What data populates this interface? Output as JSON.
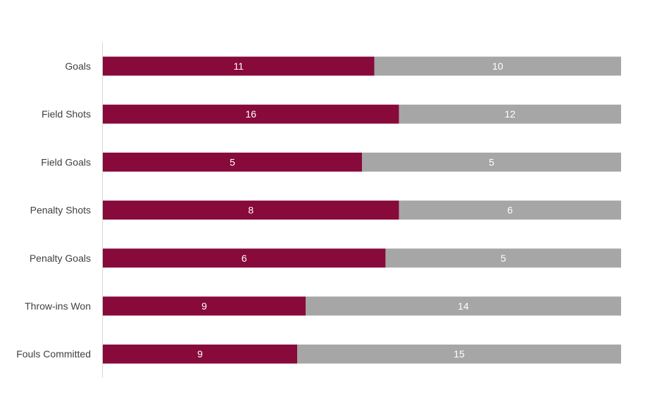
{
  "chart_data": {
    "type": "bar",
    "orientation": "horizontal",
    "stacked": "100-percent",
    "categories": [
      "Goals",
      "Field Shots",
      "Field Goals",
      "Penalty Shots",
      "Penalty Goals",
      "Throw-ins Won",
      "Fouls Committed"
    ],
    "series": [
      {
        "values": [
          11,
          16,
          5,
          8,
          6,
          9,
          9
        ],
        "color": "#870A3A"
      },
      {
        "values": [
          10,
          12,
          5,
          6,
          5,
          14,
          15
        ],
        "color": "#A6A6A6"
      }
    ],
    "title": "",
    "xlabel": "",
    "ylabel": "",
    "grid": false,
    "legend": "none",
    "data_labels": true
  }
}
